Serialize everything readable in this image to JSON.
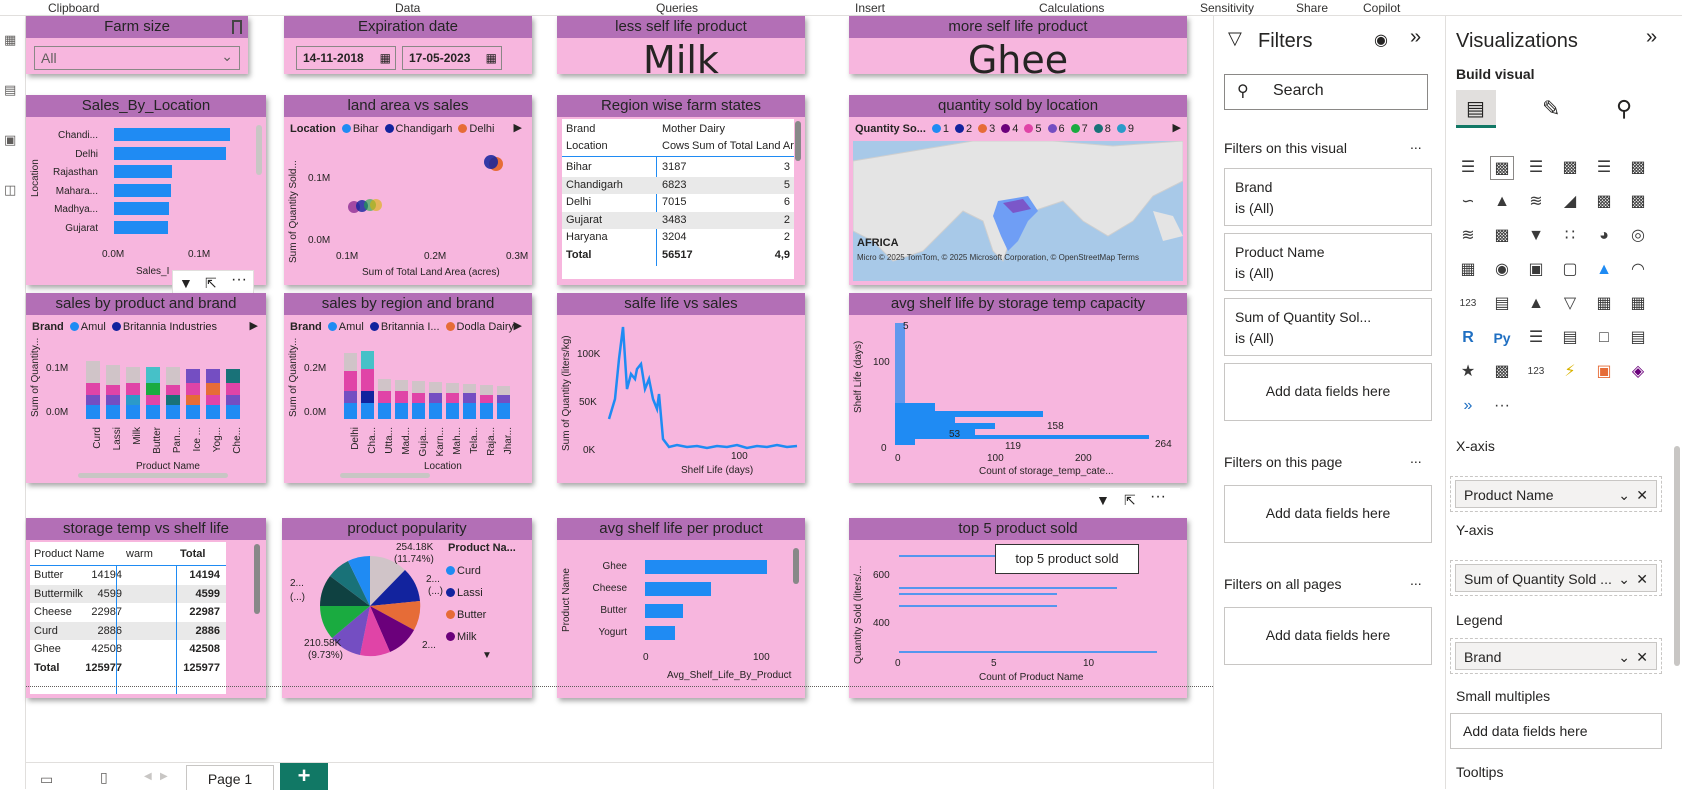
{
  "ribbon": [
    "Clipboard",
    "Data",
    "Queries",
    "Insert",
    "Calculations",
    "Sensitivity",
    "Share",
    "Copilot"
  ],
  "tiles": {
    "farm_size": {
      "title": "Farm size",
      "value": "All"
    },
    "exp": {
      "title": "Expiration date",
      "from": "14-11-2018",
      "to": "17-05-2023"
    },
    "less": {
      "title": "less self life product",
      "value": "Milk"
    },
    "more": {
      "title": "more self life product",
      "value": "Ghee"
    },
    "sbl": {
      "title": "Sales_By_Location",
      "ylabel": "Location",
      "xlabel": "Sales_I",
      "ticks": [
        "0.0M",
        "0.1M"
      ]
    },
    "land": {
      "title": "land area vs sales",
      "legend_title": "Location",
      "legend": [
        "Bihar",
        "Chandigarh",
        "Delhi"
      ],
      "ylabel": "Sum of Quantity Sold...",
      "xlabel": "Sum of Total Land Area (acres)",
      "yticks": [
        "0.1M",
        "0.0M"
      ],
      "xticks": [
        "0.1M",
        "0.2M",
        "0.3M"
      ]
    },
    "region": {
      "title": "Region wise farm states",
      "brand_label": "Brand",
      "brand_value": "Mother Dairy",
      "col_location": "Location",
      "col_cows": "Cows",
      "col_land": "Sum of Total Land Are",
      "rows": [
        [
          "Bihar",
          "3187",
          "3"
        ],
        [
          "Chandigarh",
          "6823",
          "5"
        ],
        [
          "Delhi",
          "7015",
          "6"
        ],
        [
          "Gujarat",
          "3483",
          "2"
        ],
        [
          "Haryana",
          "3204",
          "2"
        ]
      ],
      "total": [
        "Total",
        "56517",
        "4,9"
      ]
    },
    "qsl": {
      "title": "quantity sold by location",
      "legend_title": "Quantity So...",
      "legend": [
        "1",
        "2",
        "3",
        "4",
        "5",
        "6",
        "7",
        "8",
        "9"
      ],
      "africa": "AFRICA",
      "credit": "© 2025 TomTom, © 2025 Microsoft Corporation, © OpenStreetMap  Terms",
      "logo": "Micro"
    },
    "spb": {
      "title": "sales by product and brand",
      "legend_title": "Brand",
      "legend": [
        "Amul",
        "Britannia Industries"
      ],
      "ylabel": "Sum of Quantity...",
      "xlabel": "Product Name",
      "yticks": [
        "0.1M",
        "0.0M"
      ],
      "cats": [
        "Curd",
        "Lassi",
        "Milk",
        "Butter",
        "Pan...",
        "Ice ...",
        "Yog...",
        "Che..."
      ]
    },
    "srb": {
      "title": "sales by region and brand",
      "legend_title": "Brand",
      "legend": [
        "Amul",
        "Britannia I...",
        "Dodla Dairy"
      ],
      "ylabel": "Sum of Quantity...",
      "xlabel": "Location",
      "yticks": [
        "0.2M",
        "0.0M"
      ],
      "cats": [
        "Delhi",
        "Cha...",
        "Utta...",
        "Mad...",
        "Guja...",
        "Karn...",
        "Mah...",
        "Tela...",
        "Raja...",
        "Jhar..."
      ]
    },
    "sls": {
      "title": "salfe life vs sales",
      "ylabel": "Sum of Quantity (liters/kg)",
      "xlabel": "Shelf Life (days)",
      "yticks": [
        "100K",
        "50K",
        "0K"
      ],
      "xticks": [
        "100"
      ]
    },
    "avgst": {
      "title": "avg shelf life by storage temp capacity",
      "ylabel": "Shelf Life (days)",
      "xlabel": "Count of storage_temp_cate...",
      "yticks": [
        "100",
        "0"
      ],
      "xticks": [
        "0",
        "100",
        "200"
      ],
      "labels": [
        "5",
        "158",
        "119",
        "264",
        "53"
      ]
    },
    "stsl": {
      "title": "storage temp vs shelf life",
      "cols": [
        "Product Name",
        "warm",
        "Total"
      ],
      "rows": [
        [
          "Butter",
          "14194",
          "14194"
        ],
        [
          "Buttermilk",
          "4599",
          "4599"
        ],
        [
          "Cheese",
          "22987",
          "22987"
        ],
        [
          "Curd",
          "2886",
          "2886"
        ],
        [
          "Ghee",
          "42508",
          "42508"
        ]
      ],
      "total": [
        "Total",
        "125977",
        "125977"
      ]
    },
    "pop": {
      "title": "product popularity",
      "legend_title": "Product Na...",
      "legend": [
        "Curd",
        "Lassi",
        "Butter",
        "Milk"
      ],
      "l1": "254.18K",
      "l1b": "(11.74%)",
      "l2": "210.58K",
      "l2b": "(9.73%)",
      "l3": "2...",
      "l3b": "(...)",
      "l4": "2...",
      "l4b": "(...)",
      "l5": "2..."
    },
    "avgpp": {
      "title": "avg shelf life per product",
      "ylabel": "Product Name",
      "xlabel": "Avg_Shelf_Life_By_Product",
      "cats": [
        "Ghee",
        "Cheese",
        "Butter",
        "Yogurt"
      ],
      "xticks": [
        "0",
        "100"
      ]
    },
    "top5": {
      "title": "top 5 product sold",
      "tooltip": "top 5 product sold",
      "ylabel": "Quantity Sold (liters/...",
      "xlabel": "Count of Product Name",
      "yticks": [
        "600",
        "400"
      ],
      "xticks": [
        "0",
        "5",
        "10"
      ]
    }
  },
  "page_tab": "Page 1",
  "filters": {
    "title": "Filters",
    "search": "Search",
    "on_visual": "Filters on this visual",
    "cards": [
      {
        "name": "Brand",
        "state": "is (All)"
      },
      {
        "name": "Product Name",
        "state": "is (All)"
      },
      {
        "name": "Sum of Quantity Sol...",
        "state": "is (All)"
      }
    ],
    "add": "Add data fields here",
    "on_page": "Filters on this page",
    "on_all": "Filters on all pages",
    "more": "..."
  },
  "viz": {
    "title": "Visualizations",
    "build": "Build visual",
    "xaxis": "X-axis",
    "xaxis_val": "Product Name",
    "yaxis": "Y-axis",
    "yaxis_val": "Sum of Quantity Sold ...",
    "legend": "Legend",
    "legend_val": "Brand",
    "small": "Small multiples",
    "add": "Add data fields here",
    "tooltips": "Tooltips"
  },
  "colors": {
    "tile": "#f7b6de",
    "header": "#b36fb6",
    "bar": "#1f8bf3"
  }
}
